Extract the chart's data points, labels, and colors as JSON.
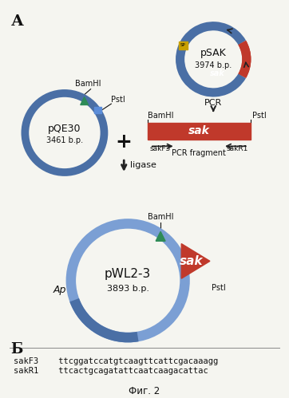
{
  "bg_color": "#f5f5f0",
  "title_A": "А",
  "title_B": "Б",
  "fig_label": "Фиг. 2",
  "pSAK_label": "pSAK",
  "pSAK_size": "3974 b.p.",
  "pQE30_label": "pQE30",
  "pQE30_size": "3461 b.p.",
  "pWL23_label": "pWL2-3",
  "pWL23_size": "3893 b.p.",
  "pcr_label": "PCR",
  "sak_label": "sak",
  "pcr_fragment_label": "PCR fragment",
  "ligase_label": "ligase",
  "BamHI_label": "BamHI",
  "PstI_label": "PstI",
  "sakF3_label": "sakF3",
  "sakR1_label": "sakR1",
  "Ap_label": "Ap",
  "seq_sakF3": "sakF3    ttcggatccatgtcaagttcattcgacaaagg",
  "seq_sakR1": "sakR1    ttcactgcagatattcaatcaagacattac",
  "plasmid_blue": "#4a6fa5",
  "plasmid_light_blue": "#7b9fd4",
  "sak_red": "#c0392b",
  "sak_dark_red": "#922b21",
  "pcr_rect_red": "#c0392b",
  "green_triangle": "#2e8b57",
  "blue_rect": "#5b8dd9",
  "sp_color": "#c8a000",
  "arrow_color": "#222222",
  "text_color": "#111111"
}
